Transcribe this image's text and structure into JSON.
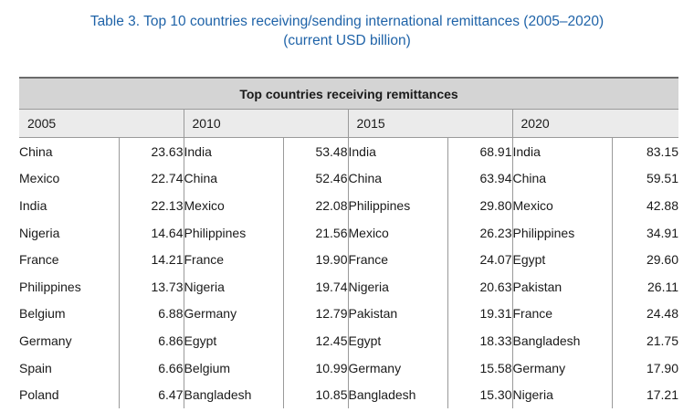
{
  "caption": {
    "line1": "Table 3. Top 10 countries receiving/sending international remittances (2005–2020)",
    "line2": "(current USD billion)"
  },
  "table": {
    "title": "Top countries receiving remittances",
    "years": [
      "2005",
      "2010",
      "2015",
      "2020"
    ],
    "rows": [
      [
        [
          "China",
          "23.63"
        ],
        [
          "India",
          "53.48"
        ],
        [
          "India",
          "68.91"
        ],
        [
          "India",
          "83.15"
        ]
      ],
      [
        [
          "Mexico",
          "22.74"
        ],
        [
          "China",
          "52.46"
        ],
        [
          "China",
          "63.94"
        ],
        [
          "China",
          "59.51"
        ]
      ],
      [
        [
          "India",
          "22.13"
        ],
        [
          "Mexico",
          "22.08"
        ],
        [
          "Philippines",
          "29.80"
        ],
        [
          "Mexico",
          "42.88"
        ]
      ],
      [
        [
          "Nigeria",
          "14.64"
        ],
        [
          "Philippines",
          "21.56"
        ],
        [
          "Mexico",
          "26.23"
        ],
        [
          "Philippines",
          "34.91"
        ]
      ],
      [
        [
          "France",
          "14.21"
        ],
        [
          "France",
          "19.90"
        ],
        [
          "France",
          "24.07"
        ],
        [
          "Egypt",
          "29.60"
        ]
      ],
      [
        [
          "Philippines",
          "13.73"
        ],
        [
          "Nigeria",
          "19.74"
        ],
        [
          "Nigeria",
          "20.63"
        ],
        [
          "Pakistan",
          "26.11"
        ]
      ],
      [
        [
          "Belgium",
          "6.88"
        ],
        [
          "Germany",
          "12.79"
        ],
        [
          "Pakistan",
          "19.31"
        ],
        [
          "France",
          "24.48"
        ]
      ],
      [
        [
          "Germany",
          "6.86"
        ],
        [
          "Egypt",
          "12.45"
        ],
        [
          "Egypt",
          "18.33"
        ],
        [
          "Bangladesh",
          "21.75"
        ]
      ],
      [
        [
          "Spain",
          "6.66"
        ],
        [
          "Belgium",
          "10.99"
        ],
        [
          "Germany",
          "15.58"
        ],
        [
          "Germany",
          "17.90"
        ]
      ],
      [
        [
          "Poland",
          "6.47"
        ],
        [
          "Bangladesh",
          "10.85"
        ],
        [
          "Bangladesh",
          "15.30"
        ],
        [
          "Nigeria",
          "17.21"
        ]
      ]
    ]
  }
}
